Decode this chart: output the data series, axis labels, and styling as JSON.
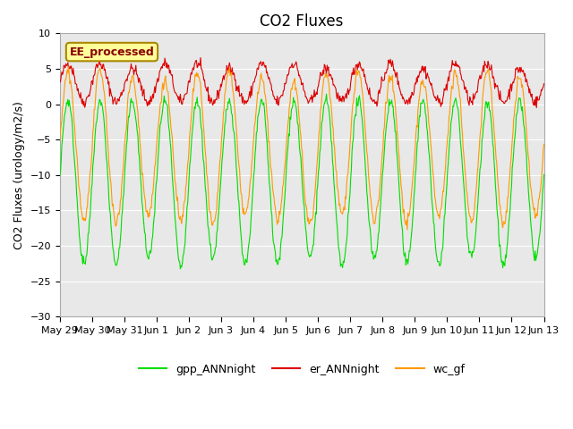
{
  "title": "CO2 Fluxes",
  "ylabel": "CO2 Fluxes (urology/m2/s)",
  "ylim": [
    -30,
    10
  ],
  "yticks": [
    -30,
    -25,
    -20,
    -15,
    -10,
    -5,
    0,
    5,
    10
  ],
  "colors": {
    "gpp_ANNnight": "#00dd00",
    "er_ANNnight": "#dd0000",
    "wc_gf": "#ff9900"
  },
  "legend_labels": [
    "gpp_ANNnight",
    "er_ANNnight",
    "wc_gf"
  ],
  "legend_colors": [
    "#00dd00",
    "#dd0000",
    "#ff9900"
  ],
  "box_label": "EE_processed",
  "box_facecolor": "#ffff99",
  "box_edgecolor": "#aa8800",
  "box_textcolor": "#880000",
  "plot_bgcolor": "#e8e8e8",
  "fig_bgcolor": "#ffffff",
  "title_fontsize": 12,
  "axis_fontsize": 9,
  "tick_fontsize": 8,
  "legend_fontsize": 9,
  "tick_positions": [
    0,
    1,
    2,
    3,
    4,
    5,
    6,
    7,
    8,
    9,
    10,
    11,
    12,
    13,
    14,
    15
  ],
  "tick_labels": [
    "May 29",
    "May 30",
    "May 31",
    "Jun 1",
    "Jun 2",
    "Jun 3",
    "Jun 4",
    "Jun 5",
    "Jun 6",
    "Jun 7",
    "Jun 8",
    "Jun 9",
    "Jun 10",
    "Jun 11",
    "Jun 12",
    "Jun 13"
  ],
  "n_days": 15,
  "n_points_per_day": 48
}
